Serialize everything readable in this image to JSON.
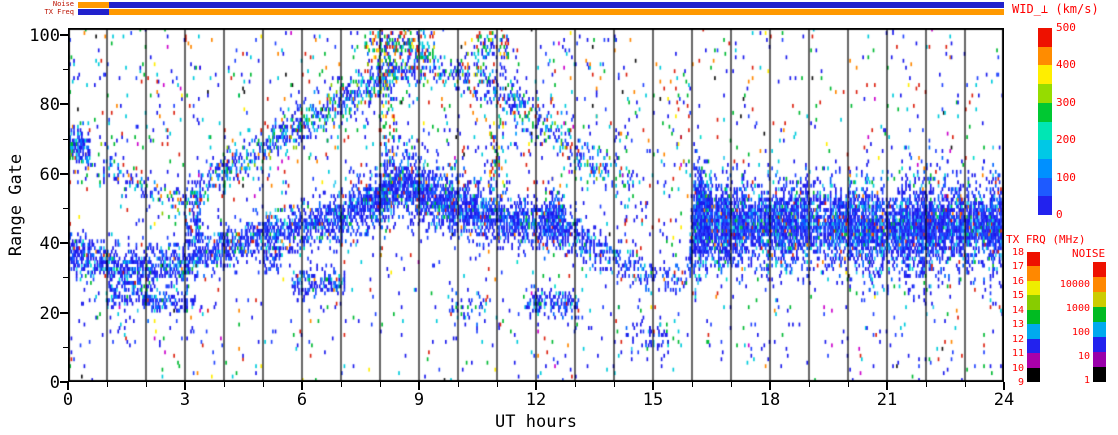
{
  "chart_data": {
    "type": "heatmap",
    "title": "",
    "xlabel": "UT hours",
    "ylabel": "Range Gate",
    "x_range": [
      0,
      24
    ],
    "y_range": [
      0,
      102
    ],
    "x_ticks": [
      0,
      3,
      6,
      9,
      12,
      15,
      18,
      21,
      24
    ],
    "x_minor_tick_hours": 1,
    "y_ticks": [
      100,
      80,
      60,
      40,
      20,
      0
    ],
    "grid": "vertical-hour-lines",
    "bands": [
      {
        "name": "main-ionospheric-band",
        "palette": "band",
        "streak_after": 16,
        "centers": [
          [
            0,
            37
          ],
          [
            1,
            33
          ],
          [
            2,
            32
          ],
          [
            3,
            34
          ],
          [
            4,
            38
          ],
          [
            5,
            42
          ],
          [
            6,
            44
          ],
          [
            7,
            47
          ],
          [
            8,
            53
          ],
          [
            8.6,
            57
          ],
          [
            9.2,
            53
          ],
          [
            10,
            50
          ],
          [
            11,
            47
          ],
          [
            12,
            44
          ],
          [
            12.6,
            46
          ],
          [
            13.2,
            40
          ],
          [
            14,
            35
          ],
          [
            15,
            30
          ],
          [
            15.9,
            28
          ],
          [
            16,
            44
          ],
          [
            17,
            45
          ],
          [
            18,
            44
          ],
          [
            19,
            45
          ],
          [
            20,
            44
          ],
          [
            21,
            43
          ],
          [
            22,
            44
          ],
          [
            23,
            44
          ],
          [
            24,
            44
          ]
        ],
        "widths": [
          [
            0,
            4
          ],
          [
            2,
            3.5
          ],
          [
            4,
            3.5
          ],
          [
            6,
            3.5
          ],
          [
            8,
            4.5
          ],
          [
            9,
            5
          ],
          [
            10,
            4.5
          ],
          [
            12,
            4
          ],
          [
            14,
            3
          ],
          [
            15,
            2.5
          ],
          [
            15.9,
            2.5
          ],
          [
            16,
            6
          ],
          [
            18,
            6
          ],
          [
            20,
            6
          ],
          [
            21,
            6.5
          ],
          [
            24,
            6.5
          ]
        ],
        "dens": [
          [
            0,
            0.8
          ],
          [
            1,
            0.55
          ],
          [
            2,
            0.55
          ],
          [
            3,
            0.6
          ],
          [
            4,
            0.6
          ],
          [
            5,
            0.65
          ],
          [
            6,
            0.7
          ],
          [
            7,
            0.7
          ],
          [
            8,
            0.9
          ],
          [
            9,
            0.85
          ],
          [
            10,
            0.8
          ],
          [
            11,
            0.7
          ],
          [
            12,
            0.7
          ],
          [
            12.6,
            0.8
          ],
          [
            13.2,
            0.5
          ],
          [
            14,
            0.45
          ],
          [
            15,
            0.3
          ],
          [
            15.9,
            0.25
          ],
          [
            16,
            1.0
          ],
          [
            18,
            0.95
          ],
          [
            20,
            0.95
          ],
          [
            22,
            0.95
          ],
          [
            24,
            1.0
          ]
        ]
      },
      {
        "name": "upper-rising-band",
        "palette": "upper",
        "centers": [
          [
            0,
            67
          ],
          [
            0.8,
            63
          ],
          [
            1.6,
            57
          ],
          [
            2.4,
            52
          ],
          [
            3,
            50
          ],
          [
            4,
            60
          ],
          [
            5,
            67
          ],
          [
            6,
            74
          ],
          [
            7,
            80
          ],
          [
            8,
            87
          ],
          [
            9,
            91
          ],
          [
            10,
            88
          ],
          [
            11,
            84
          ],
          [
            12,
            75
          ],
          [
            13,
            66
          ],
          [
            14,
            58
          ],
          [
            14.5,
            55
          ]
        ],
        "widths": [
          [
            0,
            3
          ],
          [
            2,
            3
          ],
          [
            4,
            3
          ],
          [
            6,
            3
          ],
          [
            8,
            3.5
          ],
          [
            10,
            3
          ],
          [
            12,
            3.5
          ],
          [
            14,
            3
          ],
          [
            14.5,
            3
          ]
        ],
        "dens": [
          [
            0,
            0.55
          ],
          [
            0.7,
            0.2
          ],
          [
            1.5,
            0.15
          ],
          [
            2.2,
            0.2
          ],
          [
            3,
            0.3
          ],
          [
            4,
            0.4
          ],
          [
            5,
            0.45
          ],
          [
            6,
            0.5
          ],
          [
            7,
            0.5
          ],
          [
            8,
            0.5
          ],
          [
            8.8,
            0.35
          ],
          [
            9.5,
            0.3
          ],
          [
            10.5,
            0.3
          ],
          [
            11.5,
            0.35
          ],
          [
            12.5,
            0.3
          ],
          [
            13.5,
            0.25
          ],
          [
            14.5,
            0.1
          ]
        ]
      }
    ],
    "blobs": [
      {
        "h0": 0.0,
        "h1": 0.55,
        "c": 68,
        "w": 2.6,
        "d": 0.6
      },
      {
        "h0": 1.0,
        "h1": 2.05,
        "c": 24,
        "w": 1.8,
        "d": 0.5
      },
      {
        "h0": 2.0,
        "h1": 3.25,
        "c": 22.5,
        "w": 1.8,
        "d": 0.55
      },
      {
        "h0": 3.0,
        "h1": 3.4,
        "c": 44,
        "w": 6,
        "d": 0.45
      },
      {
        "h0": 5.0,
        "h1": 5.45,
        "c": 35,
        "w": 2.2,
        "d": 0.5
      },
      {
        "h0": 5.75,
        "h1": 7.1,
        "c": 28,
        "w": 2.2,
        "d": 0.55
      },
      {
        "h0": 7.6,
        "h1": 9.4,
        "c": 97,
        "w": 3.0,
        "d": 0.4,
        "palette": "mixed"
      },
      {
        "h0": 8.0,
        "h1": 8.35,
        "c": 75,
        "w": 18,
        "d": 0.3,
        "palette": "mixed"
      },
      {
        "h0": 9.8,
        "h1": 10.7,
        "c": 21,
        "w": 2.6,
        "d": 0.3
      },
      {
        "h0": 10.4,
        "h1": 11.3,
        "c": 97,
        "w": 2.6,
        "d": 0.35,
        "palette": "mixed"
      },
      {
        "h0": 10.8,
        "h1": 11.15,
        "c": 65,
        "w": 6,
        "d": 0.3,
        "palette": "mixed"
      },
      {
        "h0": 11.75,
        "h1": 13.1,
        "c": 22,
        "w": 2.2,
        "d": 0.5
      },
      {
        "h0": 12.2,
        "h1": 12.7,
        "c": 46,
        "w": 4,
        "d": 0.55
      },
      {
        "h0": 14.3,
        "h1": 15.4,
        "c": 13,
        "w": 3.0,
        "d": 0.2
      },
      {
        "h0": 16.05,
        "h1": 16.5,
        "c": 50,
        "w": 8,
        "d": 0.8
      }
    ],
    "scatter_regions": [
      {
        "h0": 0,
        "h1": 24,
        "g0": 0,
        "g1": 102,
        "d": 0.012,
        "palette": "noise"
      },
      {
        "h0": 0,
        "h1": 9,
        "g0": 55,
        "g1": 100,
        "d": 0.02,
        "palette": "noise"
      },
      {
        "h0": 9,
        "h1": 14.5,
        "g0": 55,
        "g1": 98,
        "d": 0.028,
        "palette": "noise"
      },
      {
        "h0": 14,
        "h1": 16,
        "g0": 35,
        "g1": 90,
        "d": 0.03,
        "palette": "noise"
      },
      {
        "h0": 16.3,
        "h1": 24,
        "g0": 55,
        "g1": 102,
        "d": 0.009,
        "palette": "noise"
      },
      {
        "h0": 0,
        "h1": 3.3,
        "g0": 8,
        "g1": 33,
        "d": 0.02,
        "palette": "bluenoise"
      },
      {
        "h0": 3.3,
        "h1": 9,
        "g0": 10,
        "g1": 30,
        "d": 0.012,
        "palette": "bluenoise"
      },
      {
        "h0": 9,
        "h1": 16,
        "g0": 3,
        "g1": 25,
        "d": 0.014,
        "palette": "bluenoise"
      },
      {
        "h0": 16.3,
        "h1": 24,
        "g0": 4,
        "g1": 33,
        "d": 0.012,
        "palette": "bluenoise"
      }
    ],
    "palettes": {
      "band": [
        [
          "#1a1aee",
          50
        ],
        [
          "#2244ff",
          20
        ],
        [
          "#0066ff",
          12
        ],
        [
          "#33ccee",
          8
        ],
        [
          "#00ddcc",
          4
        ],
        [
          "#00bb33",
          3
        ],
        [
          "#dd2211",
          2
        ],
        [
          "#ff8800",
          1
        ]
      ],
      "upper": [
        [
          "#1a1aee",
          38
        ],
        [
          "#2244ff",
          15
        ],
        [
          "#0099ff",
          12
        ],
        [
          "#00ccdd",
          14
        ],
        [
          "#00bb33",
          10
        ],
        [
          "#88cc00",
          4
        ],
        [
          "#dd2211",
          5
        ],
        [
          "#ff8800",
          2
        ]
      ],
      "mixed": [
        [
          "#1a1aee",
          20
        ],
        [
          "#00ccdd",
          15
        ],
        [
          "#00bb33",
          22
        ],
        [
          "#dd2211",
          18
        ],
        [
          "#ff8800",
          8
        ],
        [
          "#ffee00",
          7
        ],
        [
          "#0066ff",
          10
        ]
      ],
      "noise": [
        [
          "#1a1aee",
          30
        ],
        [
          "#00ccdd",
          18
        ],
        [
          "#00bb33",
          14
        ],
        [
          "#dd2211",
          14
        ],
        [
          "#ff8800",
          6
        ],
        [
          "#2244ff",
          10
        ],
        [
          "#cc00cc",
          3
        ],
        [
          "#111111",
          3
        ],
        [
          "#ffee00",
          2
        ]
      ],
      "bluenoise": [
        [
          "#1a1aee",
          55
        ],
        [
          "#2244ff",
          20
        ],
        [
          "#00ccdd",
          12
        ],
        [
          "#00bb33",
          6
        ],
        [
          "#dd2211",
          4
        ],
        [
          "#cc00cc",
          3
        ]
      ]
    }
  },
  "strips": {
    "noise_label": "Noise",
    "txfreq_label": "TX Freq",
    "noise_segments": [
      {
        "f0": 0.0,
        "f1": 0.033,
        "color": "#ff9900"
      },
      {
        "f0": 0.033,
        "f1": 1.0,
        "color": "#2121cc"
      }
    ],
    "txfreq_segments": [
      {
        "f0": 0.0,
        "f1": 0.033,
        "color": "#2121cc"
      },
      {
        "f0": 0.033,
        "f1": 1.0,
        "color": "#ff9900"
      }
    ]
  },
  "colorbars": {
    "wid": {
      "title": "WID_⊥ (km/s)",
      "tick_labels": [
        "500",
        "400",
        "300",
        "200",
        "100",
        "0"
      ],
      "colors_bottom_to_top": [
        "#2222ee",
        "#1e5aff",
        "#0090ff",
        "#00c8e6",
        "#00e6b4",
        "#00c832",
        "#96dc00",
        "#ffee00",
        "#ff8c00",
        "#ee1100"
      ]
    },
    "txfrq": {
      "title": "TX FRQ (MHz)",
      "tick_labels": [
        "18",
        "17",
        "16",
        "15",
        "14",
        "13",
        "12",
        "11",
        "10",
        "9"
      ],
      "colors_bottom_to_top": [
        "#000000",
        "#aa00aa",
        "#2222ee",
        "#00aaee",
        "#00bb22",
        "#88cc00",
        "#eeee00",
        "#ff8800",
        "#ee1100"
      ]
    },
    "noise": {
      "title": "NOISE",
      "tick_labels": [
        "10000",
        "1000",
        "100",
        "10",
        "1"
      ],
      "colors_bottom_to_top": [
        "#000000",
        "#9900aa",
        "#2222ee",
        "#00aaee",
        "#00bb22",
        "#cccc00",
        "#ff8800",
        "#ee1100"
      ]
    }
  }
}
